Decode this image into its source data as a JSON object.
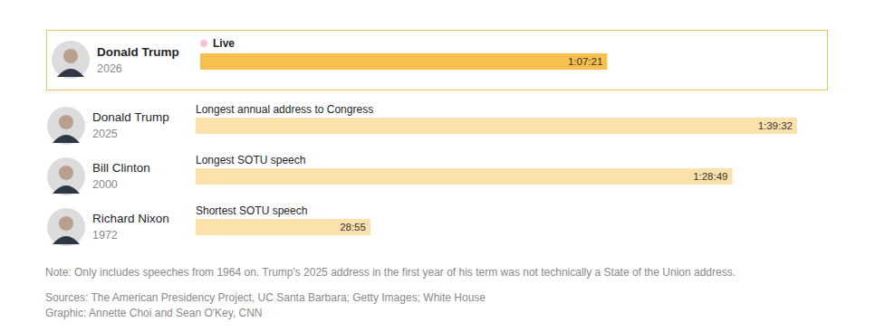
{
  "chart_data": {
    "type": "bar",
    "orientation": "horizontal",
    "categories": [
      "Donald Trump",
      "Donald Trump",
      "Bill Clinton",
      "Richard Nixon"
    ],
    "years": [
      "2026",
      "2025",
      "2000",
      "1972"
    ],
    "annotations": [
      "Live",
      "Longest annual address to Congress",
      "Longest SOTU speech",
      "Shortest SOTU speech"
    ],
    "values": [
      4041,
      5972,
      5329,
      1735
    ],
    "value_labels": [
      "1:07:21",
      "1:39:32",
      "1:28:49",
      "28:55"
    ],
    "colors": [
      "#f5c04d",
      "#fbe2ac",
      "#fbe2ac",
      "#fbe2ac"
    ],
    "data_labels": true,
    "tick_labels": false,
    "note": "Note: Only includes speeches from 1964 on. Trump's 2025 address in the first year of his term was not technically a State of the Union address.",
    "sources": "Sources: The American Presidency Project, UC Santa Barbara; Getty Images; White House",
    "credit": "Graphic: Annette Choi and Sean O'Key, CNN"
  }
}
